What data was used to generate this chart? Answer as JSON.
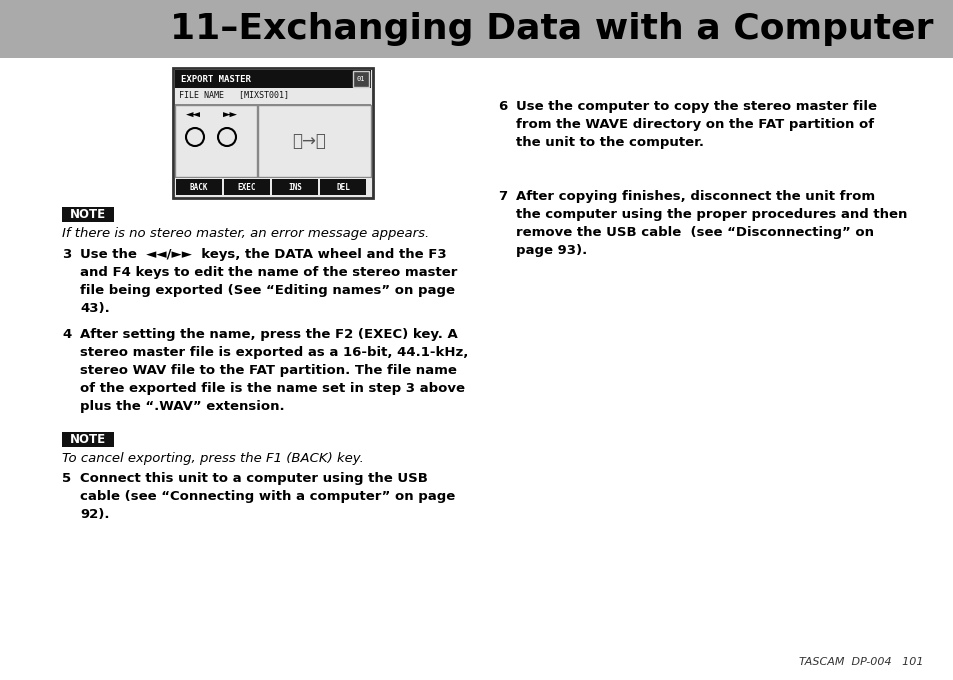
{
  "title": "11–Exchanging Data with a Computer",
  "title_bg": "#aaaaaa",
  "title_color": "#000000",
  "title_fontsize": 26,
  "page_bg": "#ffffff",
  "body_text_color": "#000000",
  "note_bg": "#000000",
  "note_text_color": "#ffffff",
  "note_fontsize": 8.5,
  "body_fontsize": 9.5,
  "italic_fontsize": 9.5,
  "footer_text": "TASCAM  DP-004   101",
  "footer_fontsize": 8,
  "note1_label": "NOTE",
  "note1_italic": "If there is no stereo master, an error message appears.",
  "note2_label": "NOTE",
  "note2_italic": "To cancel exporting, press the F1 (BACK) key.",
  "step3_num": "3",
  "step3_text": "Use the  ◄◄/►►  keys, the DATA wheel and the F3\nand F4 keys to edit the name of the stereo master\nfile being exported (See “Editing names” on page\n43).",
  "step4_num": "4",
  "step4_text": "After setting the name, press the F2 (EXEC) key. A\nstereo master file is exported as a 16-bit, 44.1-kHz,\nstereo WAV file to the FAT partition. The file name\nof the exported file is the name set in step 3 above\nplus the “.WAV” extension.",
  "step5_num": "5",
  "step5_text": "Connect this unit to a computer using the USB\ncable (see “Connecting with a computer” on page\n92).",
  "step6_num": "6",
  "step6_text": "Use the computer to copy the stereo master file\nfrom the WAVE directory on the FAT partition of\nthe unit to the computer.",
  "step7_num": "7",
  "step7_text": "After copying finishes, disconnect the unit from\nthe computer using the proper procedures and then\nremove the USB cable  (see “Disconnecting” on\npage 93)."
}
